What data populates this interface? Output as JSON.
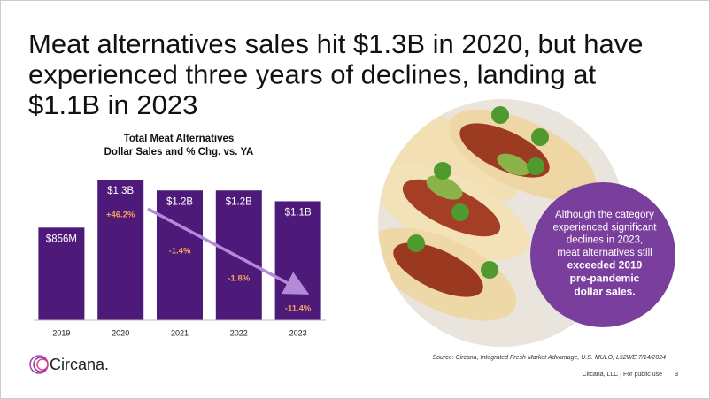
{
  "slide_title": [
    "Meat alternatives sales hit $1.3B in 2020, but have",
    "experienced three years of declines, landing at",
    "$1.1B in 2023"
  ],
  "chart_data": {
    "type": "bar",
    "title": [
      "Total Meat Alternatives",
      "Dollar Sales and % Chg. vs. YA"
    ],
    "categories": [
      "2019",
      "2020",
      "2021",
      "2022",
      "2023"
    ],
    "values": [
      856,
      1300,
      1200,
      1200,
      1100
    ],
    "value_labels": [
      "$856M",
      "$1.3B",
      "$1.2B",
      "$1.2B",
      "$1.1B"
    ],
    "color": "#4e1a7a",
    "pct_change": [
      null,
      46.2,
      -1.4,
      -1.8,
      -11.4
    ],
    "pct_change_labels": [
      null,
      "+46.2%",
      "-1.4%",
      "-1.8%",
      "-11.4%"
    ],
    "pct_color": "#f5a25a"
  },
  "callout": {
    "lines": [
      "Although the category",
      "experienced significant",
      "declines in 2023,",
      "meat alternatives still"
    ],
    "bold_lines": [
      "exceeded 2019",
      "pre-pandemic",
      "dollar sales."
    ]
  },
  "source": "Source: Circana, Integrated Fresh Market Advantage, U.S. MULO, L52WE 7/14/2024",
  "logo": "Circana.",
  "footer": "Circana, LLC |  For public use",
  "page_number": "3"
}
